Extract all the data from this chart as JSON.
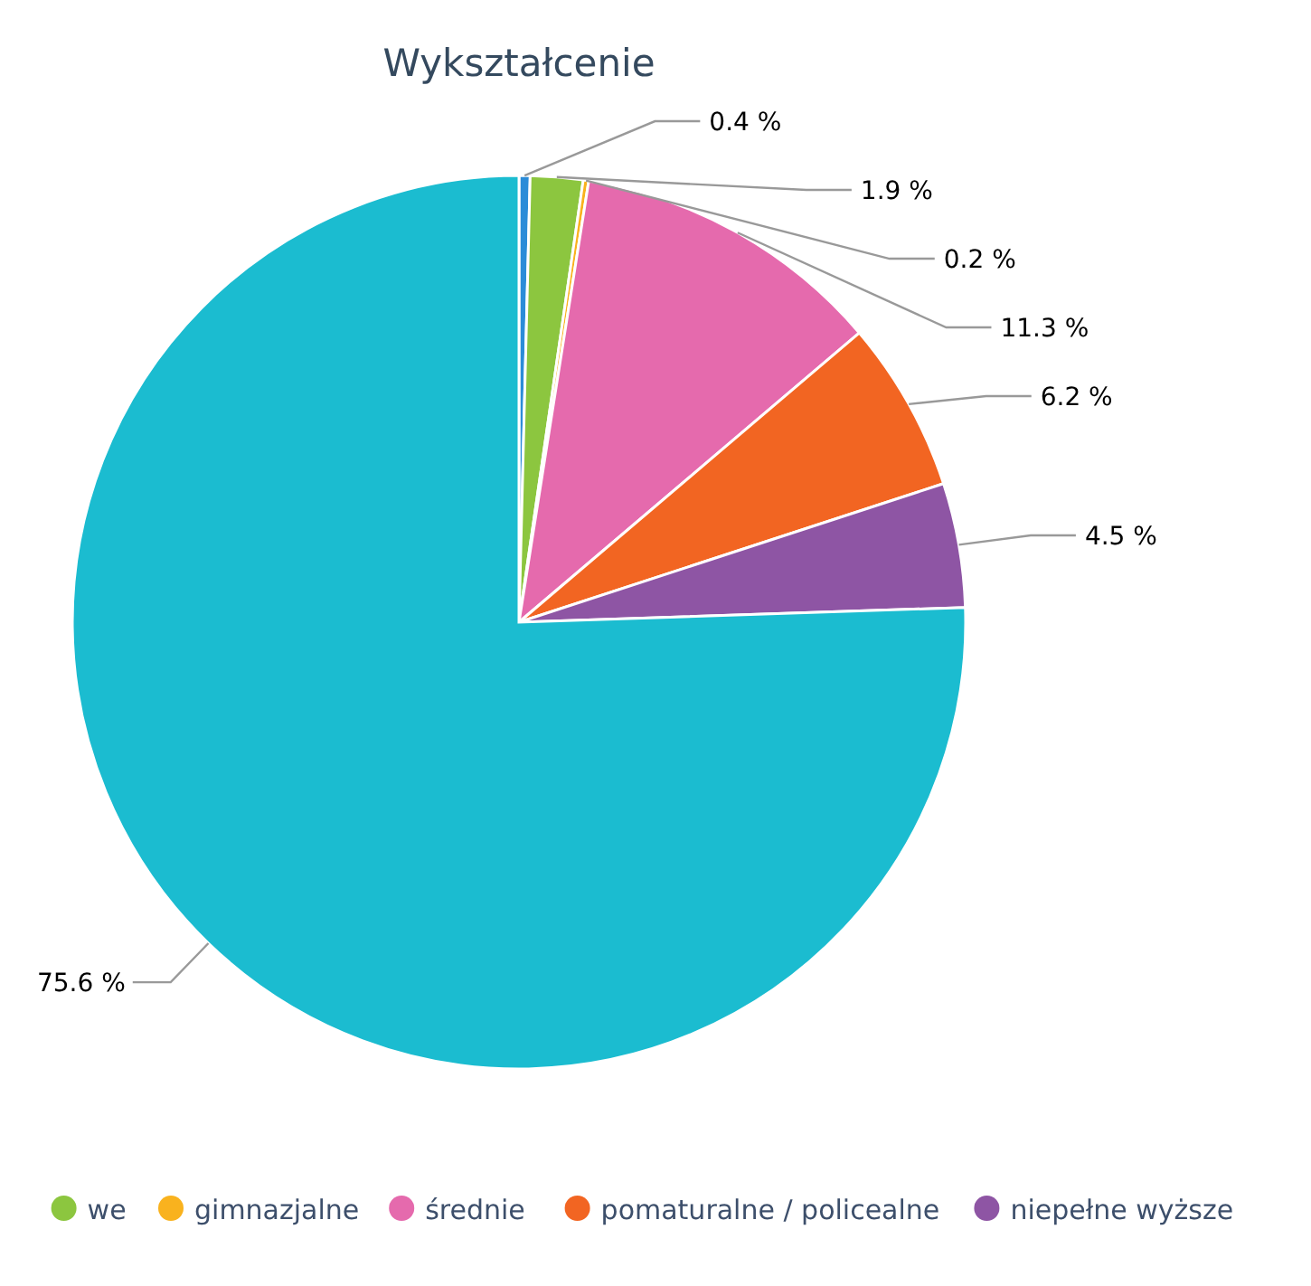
{
  "chart_data": {
    "type": "pie",
    "title": "Wykształcenie",
    "categories": [
      null,
      "we",
      "gimnazjalne",
      "średnie",
      "pomaturalne / policealne",
      "niepełne wyższe",
      null
    ],
    "values": [
      0.4,
      1.9,
      0.2,
      11.3,
      6.2,
      4.5,
      75.6
    ],
    "value_labels": [
      "0.4 %",
      "1.9 %",
      "0.2 %",
      "11.3 %",
      "6.2 %",
      "4.5 %",
      "75.6 %"
    ],
    "colors": [
      "#2b8cd8",
      "#8cc63f",
      "#f9b21e",
      "#e56aad",
      "#f26522",
      "#8e55a4",
      "#1bbcd0"
    ],
    "legend": "bottom"
  }
}
